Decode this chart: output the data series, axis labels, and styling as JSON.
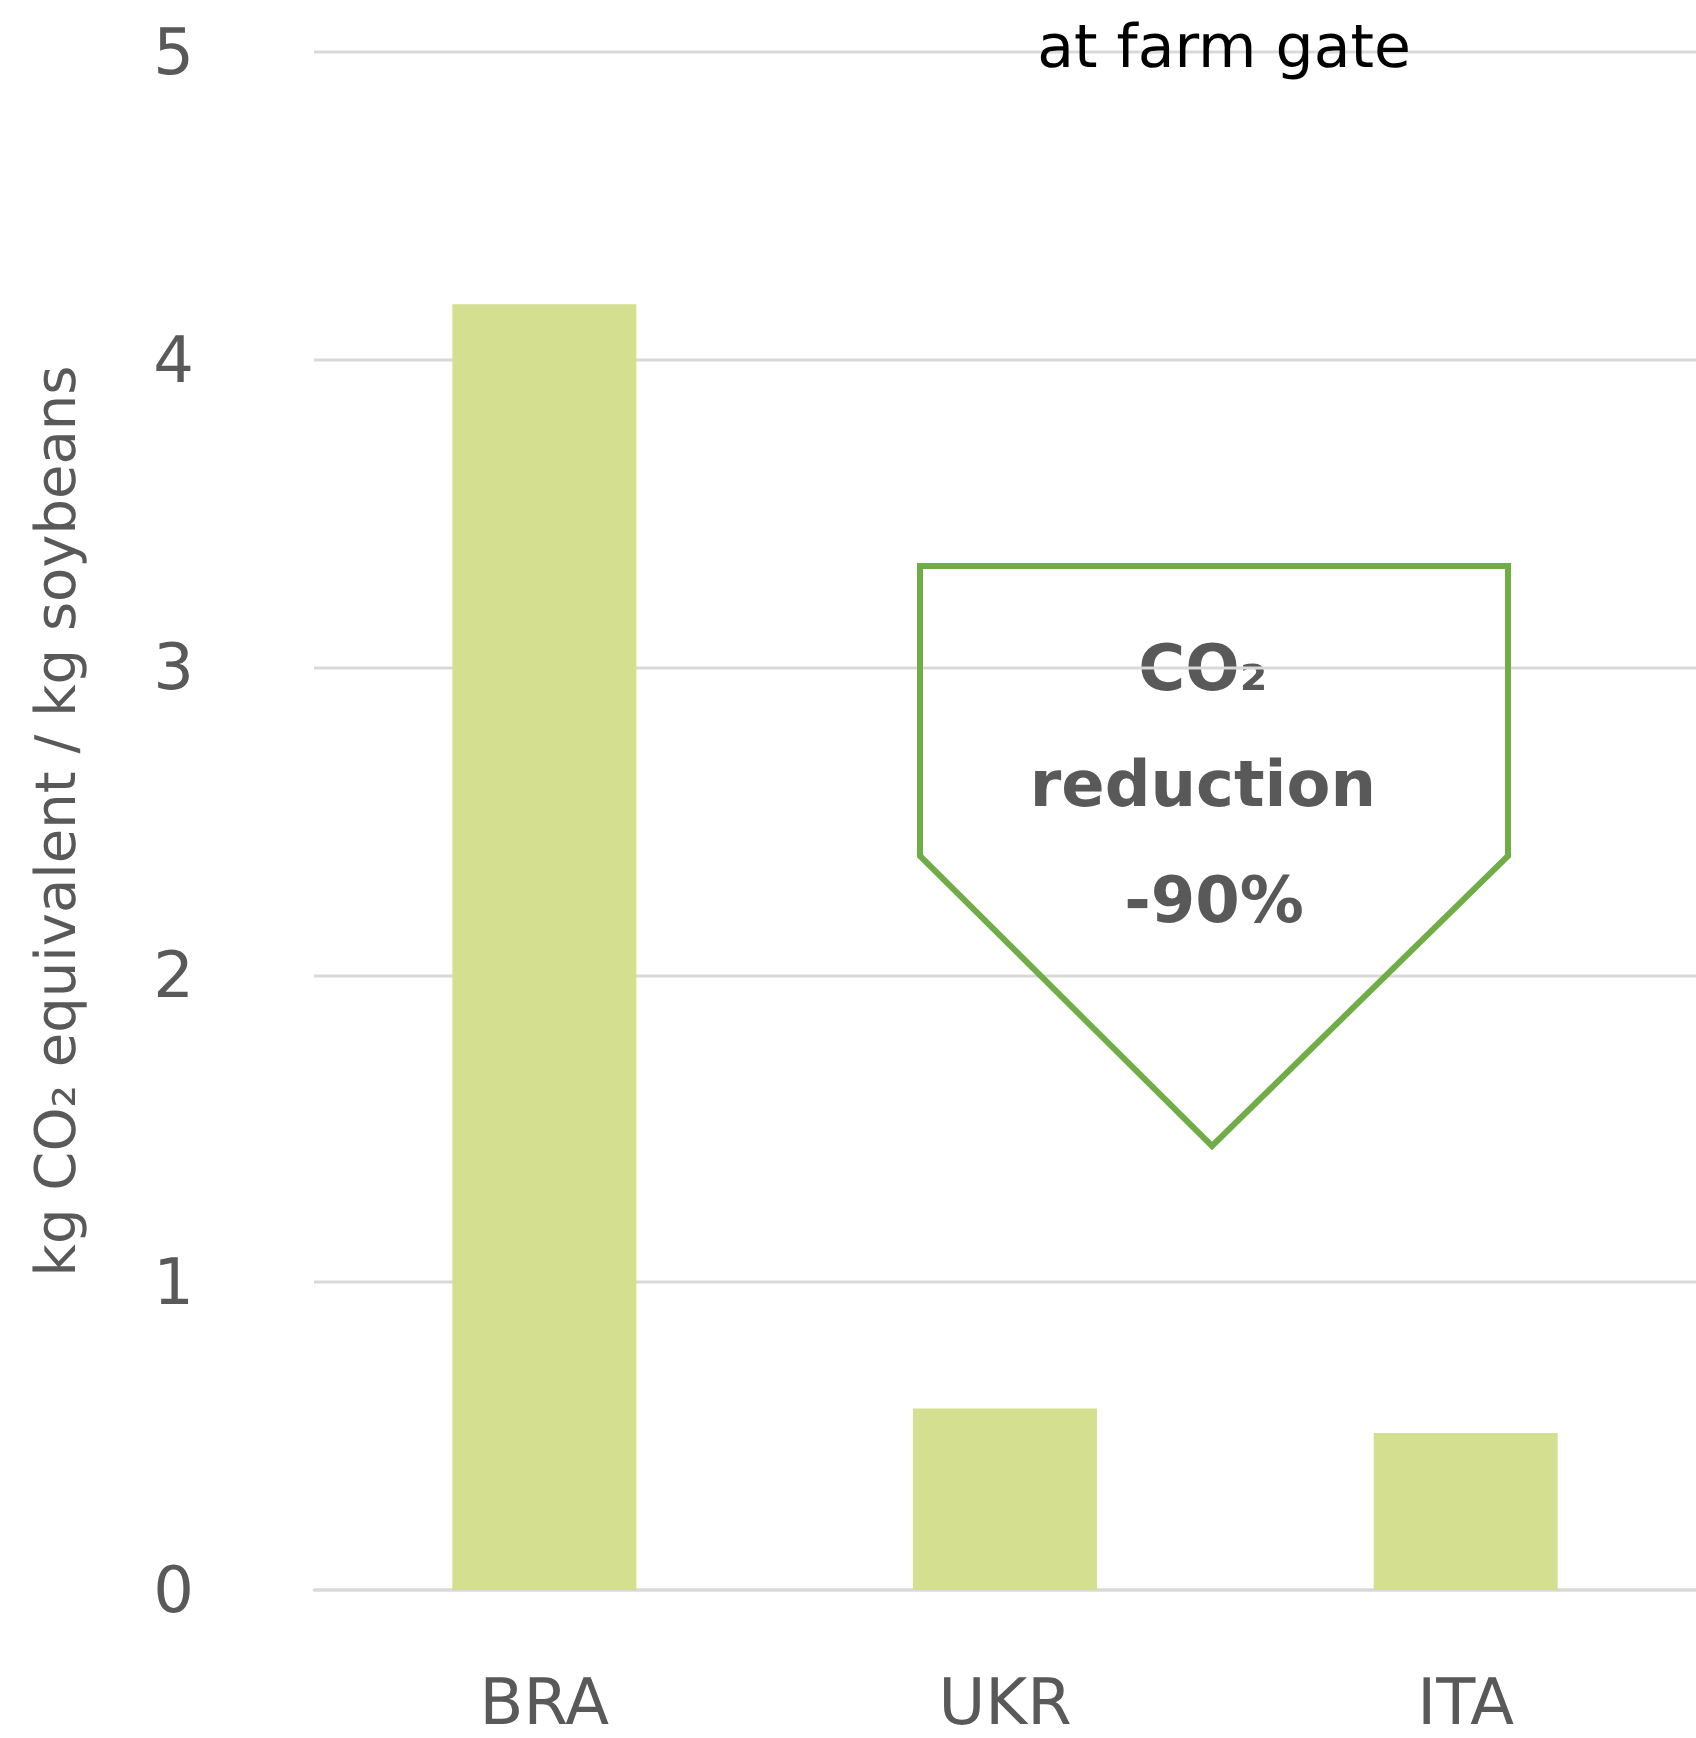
{
  "chart_data": {
    "type": "bar",
    "title": "at farm gate",
    "ylabel": "kg CO₂ equivalent / kg soybeans",
    "categories": [
      "BRA",
      "UKR",
      "ITA"
    ],
    "values": [
      4.18,
      0.59,
      0.51
    ],
    "color": "#d4e08f",
    "ylim": [
      0,
      5
    ],
    "yticks": [
      0,
      1,
      2,
      3,
      4,
      5
    ],
    "grid": "y",
    "annotations": [
      "CO₂ reduction -90%"
    ]
  }
}
